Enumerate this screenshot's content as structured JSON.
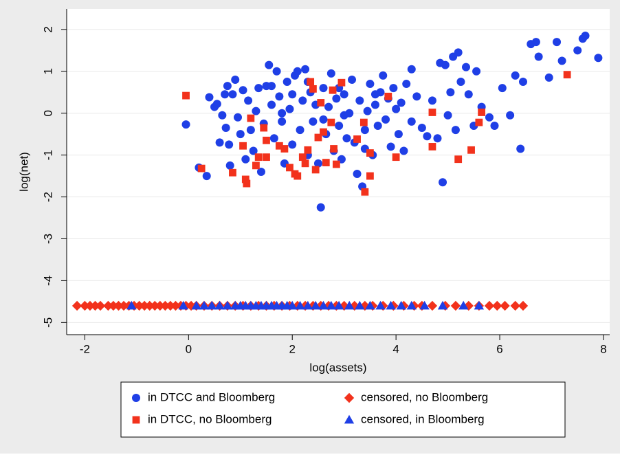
{
  "chart_data": {
    "type": "scatter",
    "xlabel": "log(assets)",
    "ylabel": "log(net)",
    "xlim": [
      -2.35,
      8.12
    ],
    "ylim": [
      -5.29,
      2.49
    ],
    "xticks": [
      -2,
      0,
      2,
      4,
      6,
      8
    ],
    "yticks": [
      -5,
      -4,
      -3,
      -2,
      -1,
      0,
      1,
      2
    ],
    "grid": true,
    "series": [
      {
        "name": "in DTCC and Bloomberg",
        "color": "#1f3fe6",
        "marker": "circle",
        "x": [
          -0.05,
          0.2,
          0.35,
          0.4,
          0.5,
          0.55,
          0.6,
          0.65,
          0.7,
          0.72,
          0.75,
          0.78,
          0.8,
          0.85,
          0.9,
          0.95,
          1.0,
          1.05,
          1.1,
          1.15,
          1.2,
          1.25,
          1.3,
          1.35,
          1.4,
          1.45,
          1.5,
          1.55,
          1.6,
          1.65,
          1.7,
          1.75,
          1.8,
          1.85,
          1.9,
          1.95,
          2.0,
          2.05,
          2.1,
          2.15,
          2.2,
          2.25,
          2.3,
          2.35,
          2.4,
          2.45,
          2.5,
          2.55,
          2.6,
          2.65,
          2.7,
          2.75,
          2.8,
          2.85,
          2.9,
          2.95,
          3.0,
          3.05,
          3.1,
          3.15,
          3.2,
          3.25,
          3.3,
          3.35,
          3.4,
          3.45,
          3.5,
          3.55,
          3.6,
          3.65,
          3.7,
          3.75,
          3.8,
          3.85,
          3.9,
          3.95,
          4.0,
          4.05,
          4.1,
          4.15,
          4.2,
          4.3,
          4.4,
          4.5,
          4.6,
          4.7,
          4.8,
          4.85,
          4.9,
          4.95,
          5.0,
          5.05,
          5.1,
          5.15,
          5.2,
          5.25,
          5.35,
          5.4,
          5.5,
          5.55,
          5.65,
          5.8,
          5.9,
          6.05,
          6.2,
          6.3,
          6.4,
          6.45,
          6.6,
          6.7,
          6.75,
          6.95,
          7.1,
          7.2,
          7.5,
          7.6,
          7.65,
          7.9,
          1.6,
          2.3,
          2.6,
          3.0,
          3.6,
          4.3,
          2.0,
          1.8,
          2.9,
          3.4
        ],
        "y": [
          -0.27,
          -1.3,
          -1.5,
          0.38,
          0.15,
          0.22,
          -0.7,
          -0.05,
          0.45,
          -0.35,
          0.65,
          -0.75,
          -1.25,
          0.45,
          0.8,
          -0.1,
          -0.5,
          0.55,
          -1.1,
          0.3,
          -0.4,
          -0.9,
          0.05,
          0.6,
          -1.4,
          -0.25,
          0.65,
          1.15,
          0.2,
          -0.6,
          1.0,
          0.4,
          -0.2,
          -1.2,
          0.75,
          0.1,
          -0.75,
          0.9,
          1.0,
          -0.4,
          0.3,
          1.05,
          -1.0,
          0.5,
          -0.2,
          0.2,
          -1.2,
          -2.25,
          0.6,
          -0.5,
          0.15,
          0.95,
          -0.9,
          0.35,
          -0.3,
          -1.1,
          0.45,
          -0.6,
          0.0,
          0.8,
          -0.7,
          -1.45,
          0.3,
          -1.75,
          -0.4,
          0.05,
          0.7,
          -1.0,
          0.2,
          -0.3,
          0.5,
          0.9,
          -0.15,
          0.35,
          -0.8,
          0.6,
          0.1,
          -0.5,
          0.25,
          -0.9,
          0.7,
          -0.2,
          0.4,
          -0.35,
          -0.55,
          0.3,
          -0.6,
          1.2,
          -1.65,
          1.15,
          -0.05,
          0.5,
          1.35,
          -0.4,
          1.45,
          0.75,
          1.1,
          0.45,
          -0.3,
          1.0,
          0.15,
          -0.1,
          -0.3,
          0.6,
          -0.05,
          0.9,
          -0.85,
          0.75,
          1.65,
          1.7,
          1.35,
          0.85,
          1.7,
          1.25,
          1.5,
          1.78,
          1.85,
          1.32,
          0.65,
          0.75,
          -0.15,
          -0.05,
          0.45,
          1.05,
          0.45,
          0.0,
          0.6,
          -0.85
        ]
      },
      {
        "name": "in DTCC, no Bloomberg",
        "color": "#f2321c",
        "marker": "square",
        "x": [
          -0.05,
          0.25,
          0.85,
          1.05,
          1.1,
          1.12,
          1.2,
          1.3,
          1.35,
          1.45,
          1.5,
          1.5,
          1.75,
          1.85,
          1.95,
          2.05,
          2.1,
          2.2,
          2.25,
          2.3,
          2.35,
          2.4,
          2.45,
          2.5,
          2.55,
          2.6,
          2.65,
          2.75,
          2.78,
          2.8,
          2.85,
          2.95,
          3.25,
          3.4,
          3.5,
          3.5,
          3.38,
          3.85,
          4.0,
          4.7,
          4.7,
          5.2,
          5.45,
          5.6,
          5.65,
          7.3
        ],
        "y": [
          0.42,
          -1.32,
          -1.42,
          -0.78,
          -1.58,
          -1.68,
          -0.12,
          -1.25,
          -1.05,
          -0.35,
          -0.65,
          -1.05,
          -0.78,
          -0.85,
          -1.3,
          -1.45,
          -1.5,
          -1.05,
          -1.2,
          -0.88,
          0.75,
          0.58,
          -1.35,
          -0.58,
          0.25,
          -0.45,
          -1.18,
          -0.22,
          0.55,
          -0.85,
          -1.22,
          0.73,
          -0.62,
          -1.88,
          -0.95,
          -1.5,
          -0.22,
          0.4,
          -1.05,
          0.02,
          -0.8,
          -1.1,
          -0.88,
          -0.22,
          0.02,
          0.92
        ]
      },
      {
        "name": "censored, no Bloomberg",
        "color": "#f2321c",
        "marker": "diamond",
        "x": [
          -2.15,
          -2.0,
          -1.9,
          -1.8,
          -1.7,
          -1.55,
          -1.45,
          -1.35,
          -1.25,
          -1.15,
          -1.05,
          -0.95,
          -0.85,
          -0.75,
          -0.65,
          -0.55,
          -0.45,
          -0.35,
          -0.25,
          -0.15,
          -0.05,
          0.05,
          0.15,
          0.3,
          0.45,
          0.6,
          0.75,
          0.9,
          1.05,
          1.2,
          1.35,
          1.5,
          1.65,
          1.8,
          1.95,
          2.1,
          2.25,
          2.4,
          2.55,
          2.7,
          2.85,
          3.0,
          3.2,
          3.4,
          3.55,
          3.75,
          3.95,
          4.15,
          4.35,
          4.5,
          4.7,
          4.95,
          5.15,
          5.4,
          5.6,
          5.8,
          5.95,
          6.1,
          6.3,
          6.45
        ],
        "y": [
          -4.6,
          -4.6,
          -4.6,
          -4.6,
          -4.6,
          -4.6,
          -4.6,
          -4.6,
          -4.6,
          -4.6,
          -4.6,
          -4.6,
          -4.6,
          -4.6,
          -4.6,
          -4.6,
          -4.6,
          -4.6,
          -4.6,
          -4.6,
          -4.6,
          -4.6,
          -4.6,
          -4.6,
          -4.6,
          -4.6,
          -4.6,
          -4.6,
          -4.6,
          -4.6,
          -4.6,
          -4.6,
          -4.6,
          -4.6,
          -4.6,
          -4.6,
          -4.6,
          -4.6,
          -4.6,
          -4.6,
          -4.6,
          -4.6,
          -4.6,
          -4.6,
          -4.6,
          -4.6,
          -4.6,
          -4.6,
          -4.6,
          -4.6,
          -4.6,
          -4.6,
          -4.6,
          -4.6,
          -4.6,
          -4.6,
          -4.6,
          -4.6,
          -4.6,
          -4.6
        ]
      },
      {
        "name": "censored, in Bloomberg",
        "color": "#1f3fe6",
        "marker": "triangle",
        "x": [
          -1.1,
          -0.1,
          0.15,
          0.3,
          0.45,
          0.6,
          0.75,
          0.9,
          1.0,
          1.1,
          1.2,
          1.3,
          1.4,
          1.5,
          1.6,
          1.7,
          1.8,
          1.9,
          2.0,
          2.15,
          2.3,
          2.45,
          2.6,
          2.75,
          2.9,
          3.1,
          3.3,
          3.5,
          3.7,
          3.9,
          4.1,
          4.3,
          4.55,
          4.9,
          5.3,
          5.6
        ],
        "y": [
          -4.6,
          -4.6,
          -4.6,
          -4.6,
          -4.6,
          -4.6,
          -4.6,
          -4.6,
          -4.6,
          -4.6,
          -4.6,
          -4.6,
          -4.6,
          -4.6,
          -4.6,
          -4.6,
          -4.6,
          -4.6,
          -4.6,
          -4.6,
          -4.6,
          -4.6,
          -4.6,
          -4.6,
          -4.6,
          -4.6,
          -4.6,
          -4.6,
          -4.6,
          -4.6,
          -4.6,
          -4.6,
          -4.6,
          -4.6,
          -4.6,
          -4.6
        ]
      }
    ]
  }
}
